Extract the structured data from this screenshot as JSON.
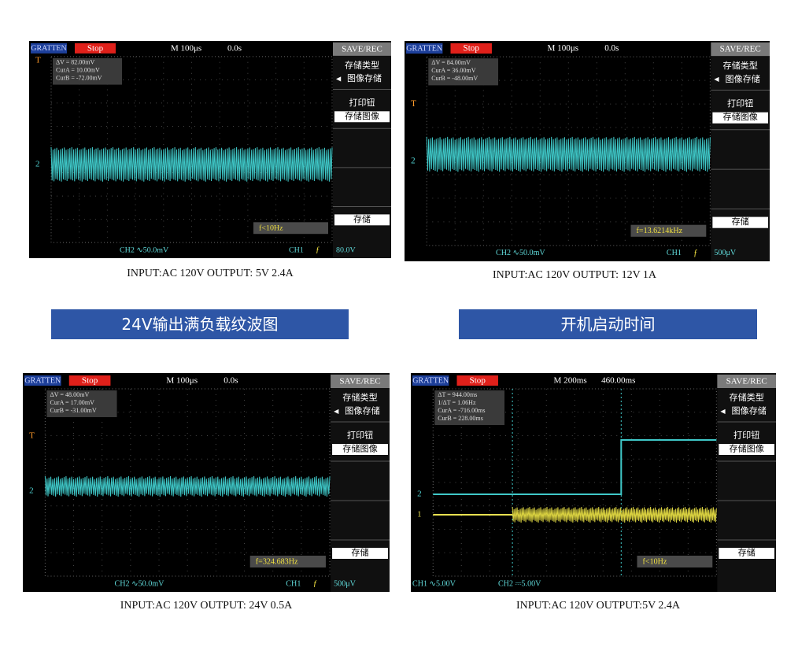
{
  "banners": [
    "24V输出满负载纹波图",
    "开机启动时间"
  ],
  "scopes": [
    {
      "brand": "GRATTEN",
      "status": "Stop",
      "timebase": "M 100μs",
      "trigger_time": "0.0s",
      "menu_title": "SAVE/REC",
      "menu": [
        "存储类型",
        "图像存储",
        "打印钮",
        "存储图像",
        "存储"
      ],
      "readouts": [
        "ΔV = 82.00mV",
        "CurA = 10.00mV",
        "CurB = -72.00mV"
      ],
      "frequency": "f<10Hz",
      "bottom": [
        "CH2 ∿50.0mV",
        "CH1",
        "80.0V"
      ],
      "markers": [
        "T",
        "2"
      ],
      "caption": "INPUT:AC 120V OUTPUT: 5V 2.4A"
    },
    {
      "brand": "GRATTEN",
      "status": "Stop",
      "timebase": "M 100μs",
      "trigger_time": "0.0s",
      "menu_title": "SAVE/REC",
      "menu": [
        "存储类型",
        "图像存储",
        "打印钮",
        "存储图像",
        "存储"
      ],
      "readouts": [
        "ΔV = 84.00mV",
        "CurA = 36.00mV",
        "CurB = -48.00mV"
      ],
      "frequency": "f=13.6214kHz",
      "bottom": [
        "CH2 ∿50.0mV",
        "CH1",
        "500μV"
      ],
      "markers": [
        "T",
        "2"
      ],
      "caption": "INPUT:AC 120V OUTPUT: 12V 1A"
    },
    {
      "brand": "GRATTEN",
      "status": "Stop",
      "timebase": "M 100μs",
      "trigger_time": "0.0s",
      "menu_title": "SAVE/REC",
      "menu": [
        "存储类型",
        "图像存储",
        "打印钮",
        "存储图像",
        "存储"
      ],
      "readouts": [
        "ΔV = 48.00mV",
        "CurA = 17.00mV",
        "CurB = -31.00mV"
      ],
      "frequency": "f=324.683Hz",
      "bottom": [
        "CH2 ∿50.0mV",
        "CH1",
        "500μV"
      ],
      "markers": [
        "T",
        "2"
      ],
      "caption": "INPUT:AC 120V OUTPUT: 24V 0.5A"
    },
    {
      "brand": "GRATTEN",
      "status": "Stop",
      "timebase": "M 200ms",
      "trigger_time": "460.00ms",
      "menu_title": "SAVE/REC",
      "menu": [
        "存储类型",
        "图像存储",
        "打印钮",
        "存储图像",
        "存储"
      ],
      "readouts": [
        "ΔT = 944.00ms",
        "1/ΔT = 1.06Hz",
        "CurA = -716.00ms",
        "CurB = 228.00ms"
      ],
      "frequency": "f<10Hz",
      "bottom": [
        "CH1 ∿5.00V",
        "CH2 ⎓5.00V"
      ],
      "markers": [
        "2",
        "1"
      ],
      "caption": "INPUT:AC 120V OUTPUT:5V 2.4A"
    }
  ]
}
